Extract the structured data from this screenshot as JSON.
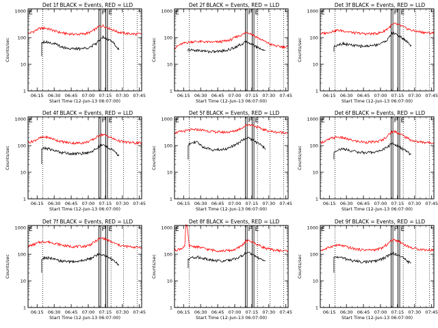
{
  "chart_data": {
    "type": "line",
    "shared": {
      "ylabel": "Counts/sec",
      "xlabel": "Start Time (12-Jun-13 06:07:00)",
      "x_tick_labels": [
        "06:15",
        "06:30",
        "06:45",
        "07:00",
        "07:15",
        "07:30",
        "07:45"
      ],
      "x_tick_minutes": [
        8,
        23,
        38,
        53,
        68,
        83,
        98
      ],
      "xlim_minutes": [
        0,
        100
      ],
      "y_tick_labels": [
        "1",
        "10",
        "100",
        "1000"
      ],
      "y_tick_values": [
        1,
        10,
        100,
        1000
      ],
      "ylim": [
        1,
        1200
      ],
      "yscale": "log",
      "series_names": [
        "Events",
        "LLD"
      ],
      "series_colors": {
        "Events": "#000000",
        "LLD": "#ff0000"
      },
      "marker_labels": [
        "F",
        "E"
      ],
      "marker_minutes": [
        63,
        69
      ],
      "dotted_minutes": [
        13,
        73,
        84,
        96
      ]
    },
    "panels": [
      {
        "title": "Det 1f BLACK = Events, RED = LLD",
        "events": {
          "start": 12,
          "spike_from": 20,
          "x": [
            12,
            15,
            20,
            25,
            30,
            35,
            40,
            45,
            50,
            55,
            60,
            63,
            66,
            70,
            75,
            80
          ],
          "y": [
            70,
            70,
            65,
            55,
            45,
            40,
            38,
            38,
            40,
            45,
            60,
            85,
            110,
            90,
            65,
            35
          ]
        },
        "lld": {
          "x": [
            0,
            5,
            10,
            15,
            20,
            25,
            30,
            35,
            40,
            45,
            50,
            55,
            60,
            63,
            66,
            70,
            75,
            80,
            85,
            90,
            95,
            100
          ],
          "y": [
            140,
            170,
            220,
            230,
            200,
            170,
            150,
            140,
            135,
            135,
            140,
            160,
            220,
            270,
            280,
            240,
            190,
            160,
            145,
            140,
            135,
            140
          ]
        }
      },
      {
        "title": "Det 2f BLACK = Events, RED = LLD",
        "events": {
          "start": 12,
          "spike_from": 30,
          "x": [
            12,
            15,
            20,
            25,
            30,
            35,
            40,
            45,
            50,
            55,
            60,
            63,
            66,
            70,
            75,
            80
          ],
          "y": [
            35,
            34,
            33,
            32,
            30,
            30,
            31,
            33,
            38,
            48,
            60,
            70,
            65,
            50,
            40,
            32
          ]
        },
        "lld": {
          "x": [
            0,
            5,
            10,
            15,
            20,
            25,
            30,
            35,
            40,
            45,
            50,
            55,
            60,
            63,
            66,
            70,
            75,
            80,
            85,
            90,
            95,
            100
          ],
          "y": [
            40,
            55,
            65,
            70,
            72,
            70,
            68,
            68,
            70,
            75,
            85,
            110,
            130,
            160,
            150,
            120,
            90,
            70,
            55,
            48,
            45,
            45
          ]
        }
      },
      {
        "title": "Det 3f BLACK = Events, RED = LLD",
        "events": {
          "start": 12,
          "spike_from": 30,
          "x": [
            12,
            15,
            20,
            25,
            30,
            35,
            40,
            45,
            50,
            55,
            60,
            63,
            66,
            70,
            75,
            80
          ],
          "y": [
            45,
            55,
            60,
            55,
            50,
            48,
            48,
            50,
            55,
            65,
            90,
            150,
            140,
            110,
            80,
            50
          ]
        },
        "lld": {
          "x": [
            0,
            5,
            10,
            15,
            20,
            25,
            30,
            35,
            40,
            45,
            50,
            55,
            60,
            63,
            66,
            70,
            75,
            80,
            85,
            90,
            95,
            100
          ],
          "y": [
            140,
            150,
            170,
            190,
            180,
            165,
            150,
            145,
            140,
            140,
            145,
            165,
            230,
            300,
            330,
            290,
            230,
            190,
            170,
            160,
            150,
            150
          ]
        }
      },
      {
        "title": "Det 4f BLACK = Events, RED = LLD",
        "events": {
          "start": 12,
          "spike_from": 20,
          "x": [
            12,
            15,
            20,
            25,
            30,
            35,
            40,
            45,
            50,
            55,
            60,
            63,
            66,
            70,
            75,
            80
          ],
          "y": [
            75,
            80,
            72,
            62,
            55,
            52,
            50,
            50,
            52,
            58,
            75,
            95,
            105,
            90,
            65,
            40
          ]
        },
        "lld": {
          "x": [
            0,
            5,
            10,
            15,
            20,
            25,
            30,
            35,
            40,
            45,
            50,
            55,
            60,
            63,
            66,
            70,
            75,
            80,
            85,
            90,
            95,
            100
          ],
          "y": [
            130,
            150,
            190,
            210,
            190,
            160,
            140,
            130,
            125,
            125,
            130,
            150,
            200,
            250,
            260,
            230,
            180,
            150,
            135,
            130,
            125,
            125
          ]
        }
      },
      {
        "title": "Det 5f BLACK = Events, RED = LLD",
        "events": {
          "start": 12,
          "spike_from": 30,
          "x": [
            12,
            15,
            20,
            25,
            30,
            35,
            40,
            45,
            50,
            55,
            60,
            63,
            66,
            70,
            75,
            80
          ],
          "y": [
            100,
            140,
            130,
            90,
            75,
            70,
            70,
            75,
            90,
            115,
            160,
            200,
            190,
            150,
            110,
            80
          ]
        },
        "lld": {
          "x": [
            0,
            5,
            10,
            15,
            20,
            25,
            30,
            35,
            40,
            45,
            50,
            55,
            60,
            63,
            66,
            70,
            75,
            80,
            85,
            90,
            95,
            100
          ],
          "y": [
            300,
            330,
            360,
            390,
            400,
            380,
            350,
            330,
            320,
            320,
            330,
            380,
            480,
            580,
            620,
            560,
            450,
            380,
            340,
            320,
            310,
            310
          ]
        }
      },
      {
        "title": "Det 6f BLACK = Events, RED = LLD",
        "events": {
          "start": 12,
          "spike_from": 30,
          "x": [
            12,
            15,
            20,
            25,
            30,
            35,
            40,
            45,
            50,
            55,
            60,
            63,
            66,
            70,
            75,
            80
          ],
          "y": [
            55,
            70,
            75,
            68,
            60,
            56,
            54,
            55,
            60,
            70,
            95,
            120,
            110,
            85,
            65,
            45
          ]
        },
        "lld": {
          "x": [
            0,
            5,
            10,
            15,
            20,
            25,
            30,
            35,
            40,
            45,
            50,
            55,
            60,
            63,
            66,
            70,
            75,
            80,
            85,
            90,
            95,
            100
          ],
          "y": [
            130,
            150,
            190,
            210,
            195,
            170,
            150,
            140,
            135,
            135,
            140,
            165,
            250,
            330,
            340,
            280,
            210,
            160,
            140,
            135,
            130,
            130
          ]
        }
      },
      {
        "title": "Det 7f BLACK = Events, RED = LLD",
        "events": {
          "start": 12,
          "spike_from": 20,
          "x": [
            12,
            15,
            20,
            25,
            30,
            35,
            40,
            45,
            50,
            55,
            60,
            63,
            66,
            70,
            75,
            80
          ],
          "y": [
            65,
            75,
            70,
            60,
            55,
            52,
            52,
            55,
            60,
            70,
            90,
            105,
            100,
            80,
            60,
            40
          ]
        },
        "lld": {
          "x": [
            0,
            5,
            10,
            15,
            20,
            25,
            30,
            35,
            40,
            45,
            50,
            55,
            60,
            63,
            66,
            70,
            75,
            80,
            85,
            90,
            95,
            100
          ],
          "y": [
            200,
            230,
            280,
            300,
            280,
            250,
            220,
            200,
            195,
            195,
            200,
            230,
            320,
            390,
            400,
            340,
            270,
            220,
            200,
            190,
            185,
            185
          ]
        }
      },
      {
        "title": "Det 8f BLACK = Events, RED = LLD",
        "events": {
          "start": 12,
          "spike_from": 30,
          "x": [
            12,
            15,
            20,
            25,
            30,
            35,
            40,
            45,
            50,
            55,
            60,
            63,
            66,
            70,
            75,
            80
          ],
          "y": [
            60,
            75,
            78,
            70,
            62,
            58,
            56,
            58,
            62,
            72,
            90,
            115,
            110,
            90,
            70,
            50
          ]
        },
        "lld": {
          "x": [
            0,
            5,
            9,
            10,
            11,
            13,
            15,
            20,
            25,
            30,
            35,
            40,
            45,
            50,
            55,
            60,
            63,
            66,
            70,
            75,
            80,
            85,
            90,
            95,
            100
          ],
          "y": [
            140,
            160,
            190,
            1200,
            1200,
            200,
            200,
            190,
            170,
            150,
            140,
            135,
            135,
            140,
            160,
            230,
            310,
            320,
            270,
            210,
            170,
            150,
            140,
            135,
            135
          ]
        }
      },
      {
        "title": "Det 9f BLACK = Events, RED = LLD",
        "events": {
          "start": 12,
          "spike_from": 20,
          "x": [
            12,
            15,
            20,
            25,
            30,
            35,
            40,
            45,
            50,
            55,
            60,
            63,
            66,
            70,
            75,
            80
          ],
          "y": [
            75,
            80,
            72,
            62,
            56,
            53,
            52,
            53,
            58,
            68,
            88,
            110,
            105,
            85,
            65,
            42
          ]
        },
        "lld": {
          "x": [
            0,
            5,
            10,
            15,
            20,
            25,
            30,
            35,
            40,
            45,
            50,
            55,
            60,
            63,
            66,
            70,
            75,
            80,
            85,
            90,
            95,
            100
          ],
          "y": [
            140,
            160,
            200,
            220,
            205,
            180,
            160,
            150,
            145,
            145,
            150,
            175,
            260,
            340,
            350,
            290,
            220,
            175,
            160,
            150,
            145,
            145
          ]
        }
      }
    ]
  }
}
